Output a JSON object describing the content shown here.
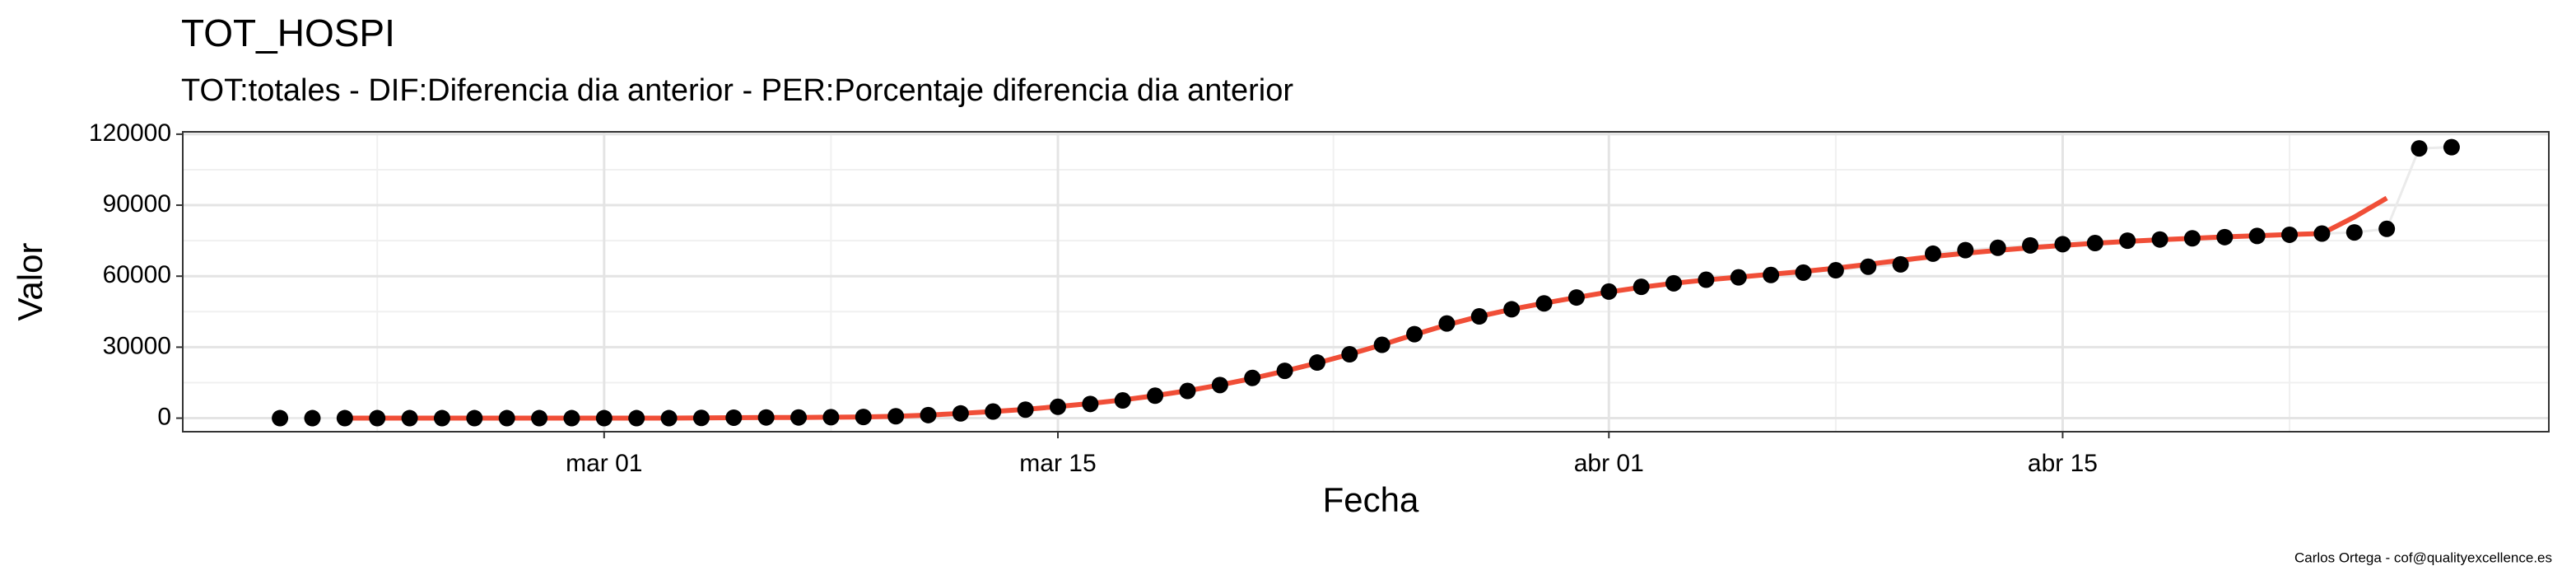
{
  "chart_data": {
    "type": "scatter",
    "title": "TOT_HOSPI",
    "subtitle": "TOT:totales - DIF:Diferencia dia anterior - PER:Porcentaje diferencia dia anterior",
    "xlabel": "Fecha",
    "ylabel": "Valor",
    "caption": "Carlos Ortega - cof@qualityexcellence.es",
    "x": [
      "feb 20",
      "feb 21",
      "feb 22",
      "feb 23",
      "feb 24",
      "feb 25",
      "feb 26",
      "feb 27",
      "feb 28",
      "feb 29",
      "mar 01",
      "mar 02",
      "mar 03",
      "mar 04",
      "mar 05",
      "mar 06",
      "mar 07",
      "mar 08",
      "mar 09",
      "mar 10",
      "mar 11",
      "mar 12",
      "mar 13",
      "mar 14",
      "mar 15",
      "mar 16",
      "mar 17",
      "mar 18",
      "mar 19",
      "mar 20",
      "mar 21",
      "mar 22",
      "mar 23",
      "mar 24",
      "mar 25",
      "mar 26",
      "mar 27",
      "mar 28",
      "mar 29",
      "mar 30",
      "mar 31",
      "abr 01",
      "abr 02",
      "abr 03",
      "abr 04",
      "abr 05",
      "abr 06",
      "abr 07",
      "abr 08",
      "abr 09",
      "abr 10",
      "abr 11",
      "abr 12",
      "abr 13",
      "abr 14",
      "abr 15",
      "abr 16",
      "abr 17",
      "abr 18",
      "abr 19",
      "abr 20",
      "abr 21",
      "abr 22",
      "abr 23",
      "abr 24",
      "abr 25",
      "abr 26",
      "abr 27"
    ],
    "series": [
      {
        "color": "#000000",
        "values": [
          0,
          0,
          0,
          0,
          0,
          0,
          0,
          0,
          0,
          0,
          0,
          0,
          0,
          100,
          200,
          300,
          300,
          400,
          500,
          800,
          1300,
          2000,
          2800,
          3600,
          4800,
          6000,
          7500,
          9500,
          11500,
          14000,
          17000,
          20000,
          23500,
          27000,
          31000,
          35500,
          40000,
          43000,
          46000,
          48500,
          51000,
          53500,
          55500,
          57000,
          58500,
          59500,
          60500,
          61500,
          62500,
          64000,
          65000,
          69500,
          71000,
          72000,
          73000,
          73500,
          74000,
          75000,
          75500,
          76000,
          76500,
          77000,
          77500,
          78000,
          78500,
          80000,
          114000,
          114500
        ]
      },
      {
        "color": "#f04e37",
        "values": [
          null,
          null,
          0,
          0,
          0,
          0,
          0,
          0,
          0,
          0,
          0,
          0,
          0,
          100,
          200,
          300,
          300,
          400,
          500,
          800,
          1300,
          2000,
          2800,
          3700,
          4900,
          6200,
          7700,
          9500,
          11600,
          14000,
          16800,
          19900,
          23300,
          27000,
          31000,
          35300,
          39400,
          43000,
          46000,
          48600,
          51000,
          53300,
          55300,
          57000,
          58400,
          59600,
          60800,
          62000,
          63400,
          65000,
          66700,
          68300,
          69700,
          70900,
          72000,
          73000,
          73900,
          74700,
          75400,
          76000,
          76600,
          77100,
          77600,
          78000,
          85000,
          93000,
          null,
          null
        ]
      }
    ],
    "xlim": [
      "feb 17",
      "abr 30"
    ],
    "xticks": [
      "mar 01",
      "mar 15",
      "abr 01",
      "abr 15"
    ],
    "ylim": [
      -5725,
      121000
    ],
    "yticks": [
      0,
      30000,
      60000,
      90000,
      120000
    ],
    "grid": true
  }
}
